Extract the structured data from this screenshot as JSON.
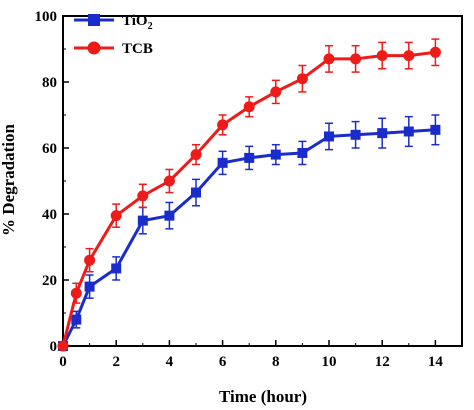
{
  "chart_data": {
    "type": "line",
    "title": "",
    "xlabel": "Time (hour)",
    "ylabel": "% Degradation",
    "xlim": [
      0,
      15
    ],
    "ylim": [
      0,
      100
    ],
    "xticks": [
      0,
      2,
      4,
      6,
      8,
      10,
      12,
      14
    ],
    "yticks": [
      0,
      20,
      40,
      60,
      80,
      100
    ],
    "grid": false,
    "legend_position": "top-left",
    "x": [
      0,
      0.5,
      1,
      2,
      3,
      4,
      5,
      6,
      7,
      8,
      9,
      10,
      11,
      12,
      13,
      14
    ],
    "series": [
      {
        "name": "TiO",
        "name_subscript": "2",
        "marker": "square",
        "color": "#1a2dcc",
        "values": [
          0,
          8,
          18,
          23.5,
          38,
          39.5,
          46.5,
          55.5,
          57,
          58,
          58.5,
          63.5,
          64,
          64.5,
          65,
          65.5
        ],
        "error": [
          0,
          2.5,
          3.5,
          3.5,
          4,
          4,
          4,
          3.5,
          3.5,
          3,
          3.5,
          4,
          4,
          4.5,
          4.5,
          4.5
        ]
      },
      {
        "name": "TCB",
        "marker": "circle",
        "color": "#ee1b1b",
        "values": [
          0,
          16,
          26,
          39.5,
          45.5,
          50,
          58,
          67,
          72.5,
          77,
          81,
          87,
          87,
          88,
          88,
          89
        ],
        "error": [
          0,
          3,
          3.5,
          3.5,
          3.5,
          3.5,
          3,
          3,
          3,
          3.5,
          4,
          4,
          4,
          4,
          4,
          4
        ]
      }
    ]
  }
}
